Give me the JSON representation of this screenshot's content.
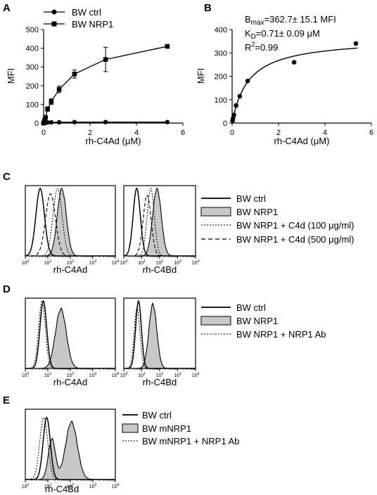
{
  "panel_labels": {
    "A": "A",
    "B": "B",
    "C": "C",
    "D": "D",
    "E": "E"
  },
  "colors": {
    "ink": "#000000",
    "fill": "#c8c8c8",
    "background": "#ffffff"
  },
  "chart_data": [
    {
      "id": "A",
      "type": "line",
      "xlabel": "rh-C4Ad (μM)",
      "ylabel": "MFI",
      "xlim": [
        0,
        6
      ],
      "ylim": [
        0,
        500
      ],
      "xticks": [
        "0",
        "2",
        "4",
        "6"
      ],
      "yticks": [
        "0",
        "100",
        "200",
        "300",
        "400",
        "500"
      ],
      "legend_position": "top",
      "series": [
        {
          "name": "BW ctrl",
          "marker": "circle",
          "x": [
            0,
            0.04,
            0.08,
            0.17,
            0.33,
            0.67,
            1.33,
            2.67,
            5.33
          ],
          "y": [
            0,
            2,
            3,
            3,
            4,
            4,
            5,
            5,
            5
          ],
          "err": [
            0,
            0,
            0,
            0,
            0,
            0,
            0,
            0,
            0
          ]
        },
        {
          "name": "BW NRP1",
          "marker": "square",
          "x": [
            0,
            0.04,
            0.08,
            0.17,
            0.33,
            0.67,
            1.33,
            2.67,
            5.33
          ],
          "y": [
            0,
            15,
            30,
            75,
            115,
            180,
            262,
            340,
            410
          ],
          "err": [
            0,
            8,
            10,
            12,
            15,
            18,
            22,
            65,
            5
          ]
        }
      ]
    },
    {
      "id": "B",
      "type": "scatter",
      "xlabel": "rh-C4Ad (μM)",
      "ylabel": "MFI",
      "xlim": [
        0,
        6
      ],
      "ylim": [
        0,
        400
      ],
      "xticks": [
        "0",
        "2",
        "4",
        "6"
      ],
      "yticks": [
        "0",
        "100",
        "200",
        "300",
        "400"
      ],
      "annotation": {
        "bmax_symbol": "B",
        "bmax_sub": "max",
        "bmax_value": "=362.7± 15.1 MFI",
        "kd_symbol": "K",
        "kd_sub": "D",
        "kd_value": "=0.71± 0.09 μM",
        "r2_symbol": "R",
        "r2_sup": "2",
        "r2_value": "=0.99"
      },
      "fit": {
        "model": "one-site",
        "bmax": 362.7,
        "kd": 0.71
      },
      "points": {
        "x": [
          0.02,
          0.04,
          0.08,
          0.17,
          0.33,
          0.67,
          2.67,
          5.33
        ],
        "y": [
          10,
          20,
          35,
          75,
          115,
          180,
          260,
          340
        ]
      }
    }
  ],
  "histograms": {
    "C_left_xlabel": "rh-C4Ad",
    "C_right_xlabel": "rh-C4Bd",
    "D_left_xlabel": "rh-C4Ad",
    "D_right_xlabel": "rh-C4Bd",
    "E_xlabel": "rh-C4Bd",
    "decade_base": "10",
    "decade_exps": [
      "0",
      "1",
      "2",
      "3",
      "4"
    ]
  },
  "legends": {
    "C": [
      "BW ctrl",
      "BW NRP1",
      "BW NRP1 + C4d (100 μg/ml)",
      "BW NRP1 + C4d (500 μg/ml)"
    ],
    "D": [
      "BW ctrl",
      "BW NRP1",
      "BW NRP1 + NRP1 Ab"
    ],
    "E": [
      "BW ctrl",
      "BW mNRP1",
      "BW mNRP1 + NRP1 Ab"
    ]
  }
}
